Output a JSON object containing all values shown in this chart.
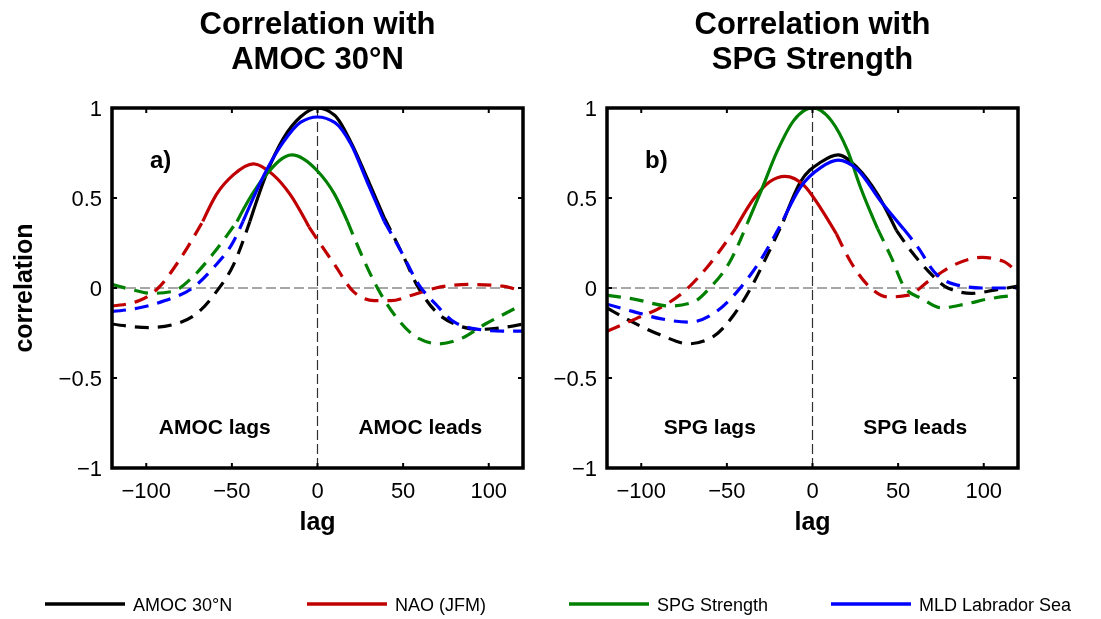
{
  "chart_data": [
    {
      "type": "line",
      "title": "Correlation with\nAMOC 30°N",
      "xlabel": "lag",
      "ylabel": "correlation",
      "xlim": [
        -120,
        120
      ],
      "ylim": [
        -1,
        1
      ],
      "xticks": [
        -100,
        -50,
        0,
        50,
        100
      ],
      "yticks": [
        -1,
        -0.5,
        0,
        0.5,
        1
      ],
      "ref_lines": [
        {
          "axis": "x",
          "value": 0,
          "color": "#303030",
          "line_style": "dashed"
        },
        {
          "axis": "y",
          "value": 0,
          "color": "#505050",
          "line_style": "dashed"
        }
      ],
      "annotations": [
        "a)",
        "AMOC lags",
        "AMOC leads"
      ],
      "legend": "bottom",
      "series": [
        {
          "name": "AMOC 30°N",
          "color": "#000000",
          "line_style": "solid",
          "x": [
            -39.5,
            -30,
            -20,
            -10,
            0,
            10,
            19.5,
            29,
            39
          ],
          "values": [
            0.37,
            0.63,
            0.83,
            0.95,
            1.0,
            0.96,
            0.81,
            0.61,
            0.39
          ]
        },
        {
          "color": "#000000",
          "line_style": "dashed",
          "x": [
            -120,
            -98.5,
            -83,
            -69,
            -59,
            -49,
            -39.5,
            0,
            39,
            49,
            59,
            69,
            80,
            94,
            108,
            120
          ],
          "values": [
            -0.2,
            -0.22,
            -0.2,
            -0.13,
            -0.02,
            0.13,
            0.37,
            null,
            0.39,
            0.2,
            0,
            -0.13,
            -0.2,
            -0.23,
            -0.22,
            -0.2
          ]
        },
        {
          "name": "NAO (JFM)",
          "color": "#c00000",
          "line_style": "solid",
          "x": [
            -67,
            -59,
            -49,
            -37.5,
            -26,
            -16,
            -5
          ],
          "values": [
            0.37,
            0.52,
            0.63,
            0.69,
            0.63,
            0.52,
            0.34
          ]
        },
        {
          "color": "#c00000",
          "line_style": "dashed",
          "x": [
            -120,
            -104,
            -93,
            -81,
            -67,
            -35,
            -5,
            2,
            10,
            21,
            33,
            43,
            55,
            69,
            88,
            108,
            120
          ],
          "values": [
            -0.1,
            -0.07,
            0,
            0.15,
            0.37,
            null,
            0.34,
            0.24,
            0.13,
            -0.02,
            -0.07,
            -0.07,
            -0.04,
            0,
            0.02,
            0.01,
            -0.02
          ]
        },
        {
          "name": "SPG Strength",
          "color": "#008000",
          "line_style": "solid",
          "x": [
            -47,
            -39.5,
            -30,
            -15,
            0,
            10,
            17.5
          ],
          "values": [
            0.37,
            0.5,
            0.63,
            0.74,
            0.65,
            0.52,
            0.37
          ]
        },
        {
          "color": "#008000",
          "line_style": "dashed",
          "x": [
            -120,
            -108,
            -97,
            -85,
            -73,
            -61,
            -47,
            -15,
            17.5,
            25,
            35,
            45,
            59,
            71,
            84,
            98,
            108,
            120
          ],
          "values": [
            0.02,
            -0.01,
            -0.03,
            -0.02,
            0.06,
            0.19,
            0.37,
            null,
            0.37,
            0.2,
            0,
            -0.15,
            -0.28,
            -0.31,
            -0.28,
            -0.2,
            -0.15,
            -0.09
          ]
        },
        {
          "name": "MLD Labrador Sea",
          "color": "#0000ff",
          "line_style": "solid",
          "x": [
            -43.5,
            -30,
            -20,
            -10,
            0,
            10,
            19.5,
            29,
            39
          ],
          "values": [
            0.37,
            0.65,
            0.81,
            0.92,
            0.95,
            0.92,
            0.8,
            0.59,
            0.37
          ]
        },
        {
          "color": "#0000ff",
          "line_style": "dashed",
          "x": [
            -120,
            -104,
            -89,
            -73,
            -61,
            -49,
            -43.5,
            0,
            39,
            49,
            59,
            69,
            80,
            94,
            108,
            120
          ],
          "values": [
            -0.13,
            -0.11,
            -0.07,
            0,
            0.11,
            0.26,
            0.37,
            null,
            0.37,
            0.2,
            0.02,
            -0.09,
            -0.19,
            -0.23,
            -0.24,
            -0.24
          ]
        }
      ]
    },
    {
      "type": "line",
      "title": "Correlation with\nSPG Strength",
      "xlabel": "lag",
      "xlim": [
        -120,
        120
      ],
      "ylim": [
        -1,
        1
      ],
      "xticks": [
        -100,
        -50,
        0,
        50,
        100
      ],
      "yticks": [
        -1,
        -0.5,
        0,
        0.5,
        1
      ],
      "ref_lines": [
        {
          "axis": "x",
          "value": 0,
          "color": "#303030",
          "line_style": "dashed"
        },
        {
          "axis": "y",
          "value": 0,
          "color": "#505050",
          "line_style": "dashed"
        }
      ],
      "annotations": [
        "b)",
        "SPG lags",
        "SPG leads"
      ],
      "series": [
        {
          "color": "#000000",
          "line_style": "solid",
          "x": [
            -17,
            -7,
            5,
            15,
            26,
            38,
            49
          ],
          "values": [
            0.37,
            0.59,
            0.7,
            0.74,
            0.67,
            0.52,
            0.32
          ]
        },
        {
          "color": "#000000",
          "line_style": "dashed",
          "x": [
            -120,
            -105,
            -89,
            -72,
            -58,
            -46,
            -36,
            -26,
            -17,
            0,
            49,
            58,
            68,
            79,
            93,
            107,
            120
          ],
          "values": [
            -0.11,
            -0.19,
            -0.26,
            -0.31,
            -0.27,
            -0.15,
            0,
            0.19,
            0.37,
            null,
            0.32,
            0.2,
            0.09,
            0,
            -0.03,
            -0.01,
            0.01
          ]
        },
        {
          "color": "#c00000",
          "line_style": "solid",
          "x": [
            -45,
            -34,
            -25,
            -16,
            -5,
            5,
            14
          ],
          "values": [
            0.33,
            0.5,
            0.59,
            0.62,
            0.57,
            0.44,
            0.3
          ]
        },
        {
          "color": "#c00000",
          "line_style": "dashed",
          "x": [
            -120,
            -103,
            -89,
            -75,
            -62,
            -45,
            -16,
            14,
            22,
            34,
            44,
            56,
            68,
            83,
            99,
            111,
            120
          ],
          "values": [
            -0.24,
            -0.17,
            -0.11,
            -0.02,
            0.11,
            0.33,
            null,
            0.3,
            0.15,
            0,
            -0.05,
            -0.04,
            0.04,
            0.13,
            0.17,
            0.15,
            0.08
          ]
        },
        {
          "color": "#008000",
          "line_style": "solid",
          "x": [
            -38,
            -30,
            -20.6,
            -11,
            0,
            11,
            20.6,
            28,
            38
          ],
          "values": [
            0.36,
            0.54,
            0.76,
            0.93,
            1.0,
            0.93,
            0.76,
            0.56,
            0.33
          ]
        },
        {
          "color": "#008000",
          "line_style": "dashed",
          "x": [
            -120,
            -105,
            -83,
            -70,
            -60,
            -48,
            -38,
            0,
            38,
            46,
            54,
            64,
            75,
            89,
            103,
            120
          ],
          "values": [
            -0.04,
            -0.06,
            -0.1,
            -0.08,
            0,
            0.15,
            0.36,
            null,
            0.33,
            0.17,
            0,
            -0.06,
            -0.11,
            -0.09,
            -0.06,
            -0.04
          ]
        },
        {
          "color": "#0000ff",
          "line_style": "solid",
          "x": [
            -17,
            -7,
            5,
            15,
            26,
            40,
            53
          ],
          "values": [
            0.38,
            0.56,
            0.67,
            0.71,
            0.66,
            0.48,
            0.33
          ]
        },
        {
          "color": "#0000ff",
          "line_style": "dashed",
          "x": [
            -120,
            -105,
            -89,
            -72,
            -56,
            -44,
            -32,
            -17,
            15,
            53,
            62,
            71,
            83,
            99,
            120
          ],
          "values": [
            -0.09,
            -0.13,
            -0.17,
            -0.19,
            -0.13,
            -0.02,
            0.13,
            0.38,
            null,
            0.33,
            0.22,
            0.09,
            0.02,
            0,
            0
          ]
        }
      ]
    }
  ]
}
